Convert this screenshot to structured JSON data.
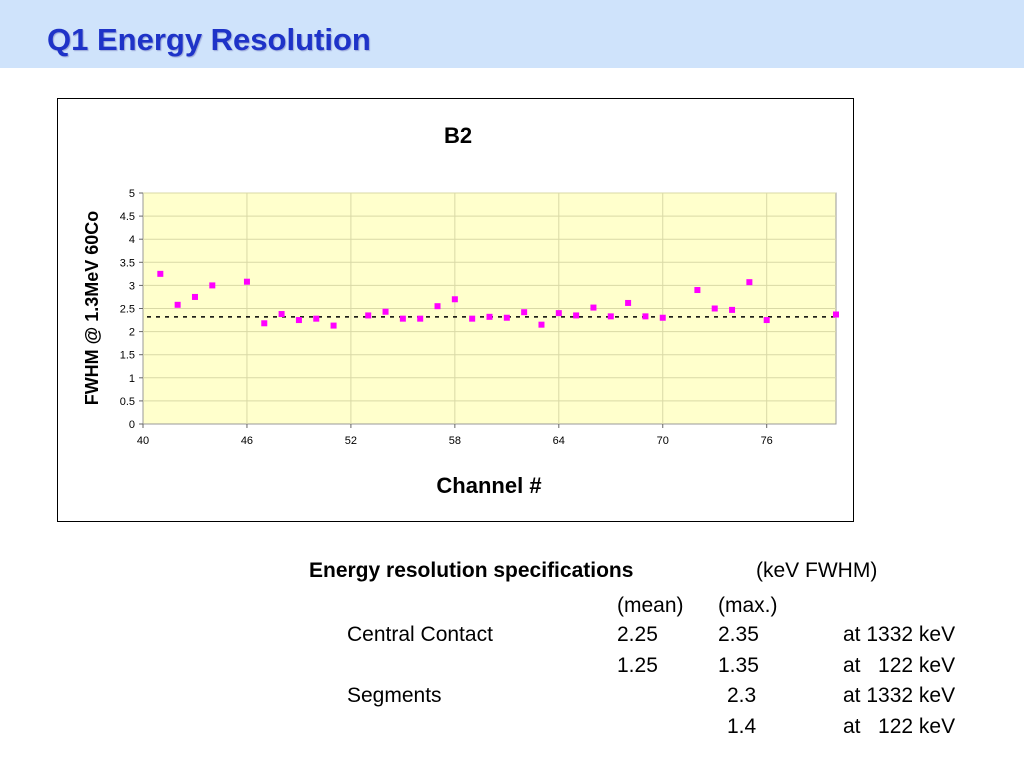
{
  "slide": {
    "title": "Q1 Energy Resolution"
  },
  "chart_data": {
    "type": "scatter",
    "title": "B2",
    "xlabel": "Channel #",
    "ylabel": "FWHM @ 1.3MeV 60Co",
    "xlim": [
      40,
      80
    ],
    "ylim": [
      0,
      5
    ],
    "xticks": [
      40,
      46,
      52,
      58,
      64,
      70,
      76
    ],
    "yticks": [
      0,
      0.5,
      1,
      1.5,
      2,
      2.5,
      3,
      3.5,
      4,
      4.5,
      5
    ],
    "grid": true,
    "legend": "none",
    "mean_line": 2.32,
    "points": [
      [
        41,
        3.25
      ],
      [
        42,
        2.58
      ],
      [
        43,
        2.75
      ],
      [
        44,
        3.0
      ],
      [
        46,
        3.08
      ],
      [
        47,
        2.18
      ],
      [
        48,
        2.38
      ],
      [
        49,
        2.25
      ],
      [
        50,
        2.28
      ],
      [
        51,
        2.13
      ],
      [
        53,
        2.35
      ],
      [
        54,
        2.43
      ],
      [
        55,
        2.28
      ],
      [
        56,
        2.28
      ],
      [
        57,
        2.55
      ],
      [
        58,
        2.7
      ],
      [
        59,
        2.28
      ],
      [
        60,
        2.32
      ],
      [
        61,
        2.3
      ],
      [
        62,
        2.42
      ],
      [
        63,
        2.15
      ],
      [
        64,
        2.4
      ],
      [
        65,
        2.35
      ],
      [
        66,
        2.52
      ],
      [
        67,
        2.33
      ],
      [
        68,
        2.62
      ],
      [
        69,
        2.33
      ],
      [
        70,
        2.3
      ],
      [
        72,
        2.9
      ],
      [
        73,
        2.5
      ],
      [
        74,
        2.47
      ],
      [
        75,
        3.07
      ],
      [
        76,
        2.25
      ],
      [
        80,
        2.37
      ]
    ],
    "colors": {
      "plot_background": "#ffffcc",
      "marker": "#ff00ff",
      "grid": "#d9d9a6",
      "mean_line": "#000000"
    }
  },
  "specs": {
    "heading": "Energy resolution specifications",
    "unit": "(keV FWHM)",
    "col_mean": "(mean)",
    "col_max": "(max.)",
    "rows": [
      {
        "label": "Central Contact",
        "mean": "2.25",
        "max": "2.35",
        "note": "at 1332 keV"
      },
      {
        "label": "",
        "mean": "1.25",
        "max": "1.35",
        "note": "at   122 keV"
      },
      {
        "label": "Segments",
        "mean": "",
        "max": "2.3",
        "note": "at 1332 keV"
      },
      {
        "label": "",
        "mean": "",
        "max": "1.4",
        "note": "at   122 keV"
      }
    ]
  }
}
